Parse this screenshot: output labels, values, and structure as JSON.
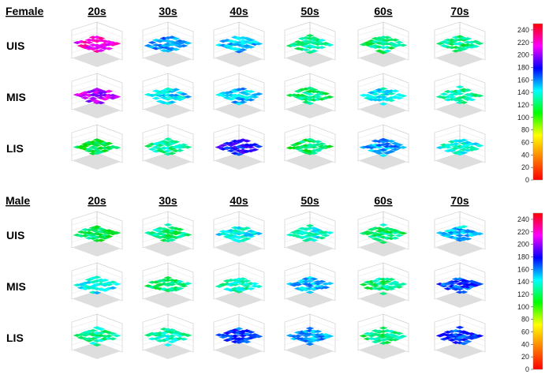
{
  "chart_data": [
    {
      "type": "surface-grid",
      "group": "Female",
      "columns": [
        "20s",
        "30s",
        "40s",
        "50s",
        "60s",
        "70s"
      ],
      "rows": [
        "UIS",
        "MIS",
        "LIS"
      ],
      "surface_mean_values": [
        [
          215,
          150,
          140,
          115,
          110,
          110
        ],
        [
          200,
          135,
          140,
          110,
          130,
          115
        ],
        [
          100,
          115,
          170,
          105,
          145,
          125
        ]
      ],
      "colorbar": {
        "min": 0,
        "max": 250,
        "ticks": [
          0,
          20,
          40,
          60,
          80,
          100,
          120,
          140,
          160,
          180,
          200,
          220,
          240
        ],
        "colors": [
          "#ff0000",
          "#ff8000",
          "#ffff00",
          "#00ff00",
          "#00ffff",
          "#0000ff",
          "#ff00ff",
          "#ff0000"
        ]
      }
    },
    {
      "type": "surface-grid",
      "group": "Male",
      "columns": [
        "20s",
        "30s",
        "40s",
        "50s",
        "60s",
        "70s"
      ],
      "rows": [
        "UIS",
        "MIS",
        "LIS"
      ],
      "surface_mean_values": [
        [
          105,
          110,
          130,
          125,
          110,
          140
        ],
        [
          130,
          110,
          120,
          140,
          110,
          160
        ],
        [
          115,
          120,
          160,
          145,
          110,
          160
        ]
      ],
      "colorbar": {
        "min": 0,
        "max": 250,
        "ticks": [
          0,
          20,
          40,
          60,
          80,
          100,
          120,
          140,
          160,
          180,
          200,
          220,
          240
        ],
        "colors": [
          "#ff0000",
          "#ff8000",
          "#ffff00",
          "#00ff00",
          "#00ffff",
          "#0000ff",
          "#ff00ff",
          "#ff0000"
        ]
      }
    }
  ]
}
